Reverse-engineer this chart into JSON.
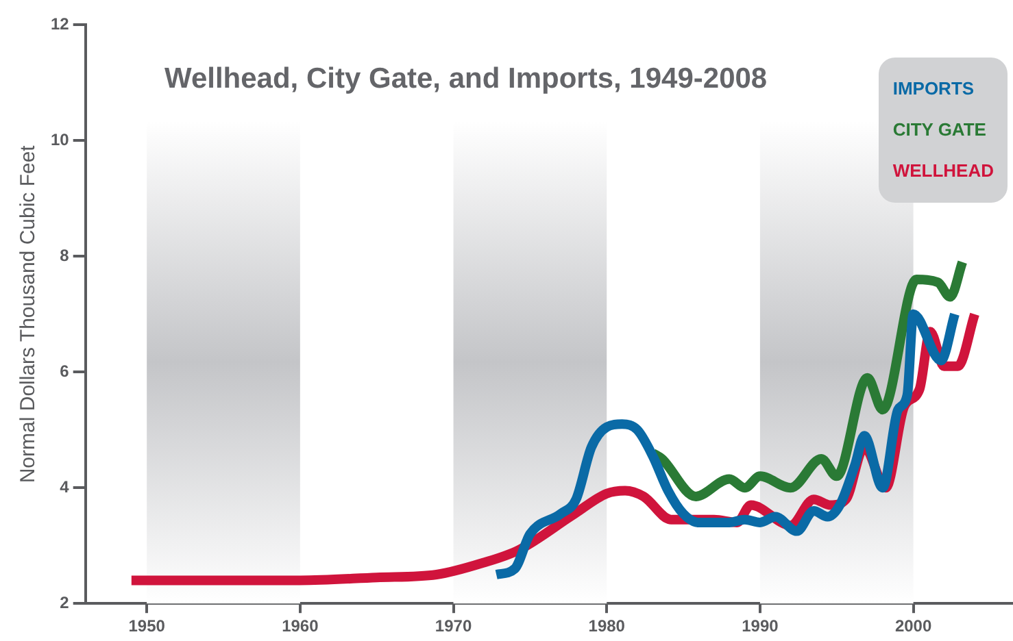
{
  "chart_data": {
    "type": "line",
    "title": "Wellhead, City Gate, and Imports, 1949-2008",
    "ylabel": "Normal Dollars Thousand Cubic Feet",
    "xlim": [
      1946,
      2006.5
    ],
    "xticks": [
      1950,
      1960,
      1970,
      1980,
      1990,
      2000
    ],
    "ylim": [
      2,
      12
    ],
    "yticks": [
      2,
      4,
      6,
      8,
      10,
      12
    ],
    "grid": false,
    "legend": "top right",
    "bands": [
      {
        "axis": "x",
        "from": 1950,
        "to": 1960,
        "color": "#c4c5c8"
      },
      {
        "axis": "x",
        "from": 1970,
        "to": 1980,
        "color": "#c4c5c8"
      },
      {
        "axis": "x",
        "from": 1990,
        "to": 2000,
        "color": "#c4c5c8"
      }
    ],
    "series": [
      {
        "name": "IMPORTS",
        "color": "#0a6aa6",
        "x": [
          1972.8,
          1974,
          1975,
          1977,
          1978,
          1979,
          1980,
          1981,
          1982,
          1983,
          1984,
          1985,
          1986,
          1988,
          1989,
          1990,
          1991,
          1992.4,
          1993.5,
          1994.4,
          1995.2,
          1996.2,
          1996.8,
          1998,
          1999,
          1999.6,
          2000,
          2001.8,
          2002.7
        ],
        "values": [
          2.5,
          2.6,
          3.2,
          3.55,
          3.8,
          4.7,
          5.05,
          5.1,
          5.0,
          4.55,
          3.95,
          3.55,
          3.4,
          3.4,
          3.45,
          3.4,
          3.5,
          3.25,
          3.6,
          3.5,
          3.7,
          4.4,
          4.9,
          4.0,
          5.35,
          5.6,
          7.0,
          6.2,
          7.0
        ]
      },
      {
        "name": "CITY GATE",
        "color": "#2a7a35",
        "x": [
          1983,
          1983.6,
          1985.8,
          1988,
          1989,
          1990,
          1992,
          1994,
          1995,
          1997,
          1998,
          2000.2,
          2001.6,
          2002.4,
          2003.2
        ],
        "values": [
          4.6,
          4.5,
          3.85,
          4.15,
          4.0,
          4.2,
          4.0,
          4.5,
          4.2,
          5.9,
          5.35,
          7.6,
          7.55,
          7.3,
          7.9
        ]
      },
      {
        "name": "WELLHEAD",
        "color": "#d0143c",
        "x": [
          1949,
          1955,
          1960,
          1965,
          1968.9,
          1971.9,
          1974.3,
          1977.9,
          1980,
          1981.2,
          1982.4,
          1984.2,
          1987,
          1988.5,
          1989.4,
          1992,
          1993.5,
          1994.6,
          1995.6,
          1996.8,
          1998.2,
          1999.4,
          2000.4,
          2001.1,
          2002,
          2002.9,
          2004
        ],
        "values": [
          2.4,
          2.4,
          2.4,
          2.45,
          2.5,
          2.7,
          2.93,
          3.55,
          3.9,
          3.95,
          3.85,
          3.45,
          3.45,
          3.4,
          3.7,
          3.35,
          3.8,
          3.7,
          3.8,
          4.7,
          4.0,
          5.4,
          5.7,
          6.7,
          6.1,
          6.1,
          7.0
        ]
      }
    ]
  }
}
